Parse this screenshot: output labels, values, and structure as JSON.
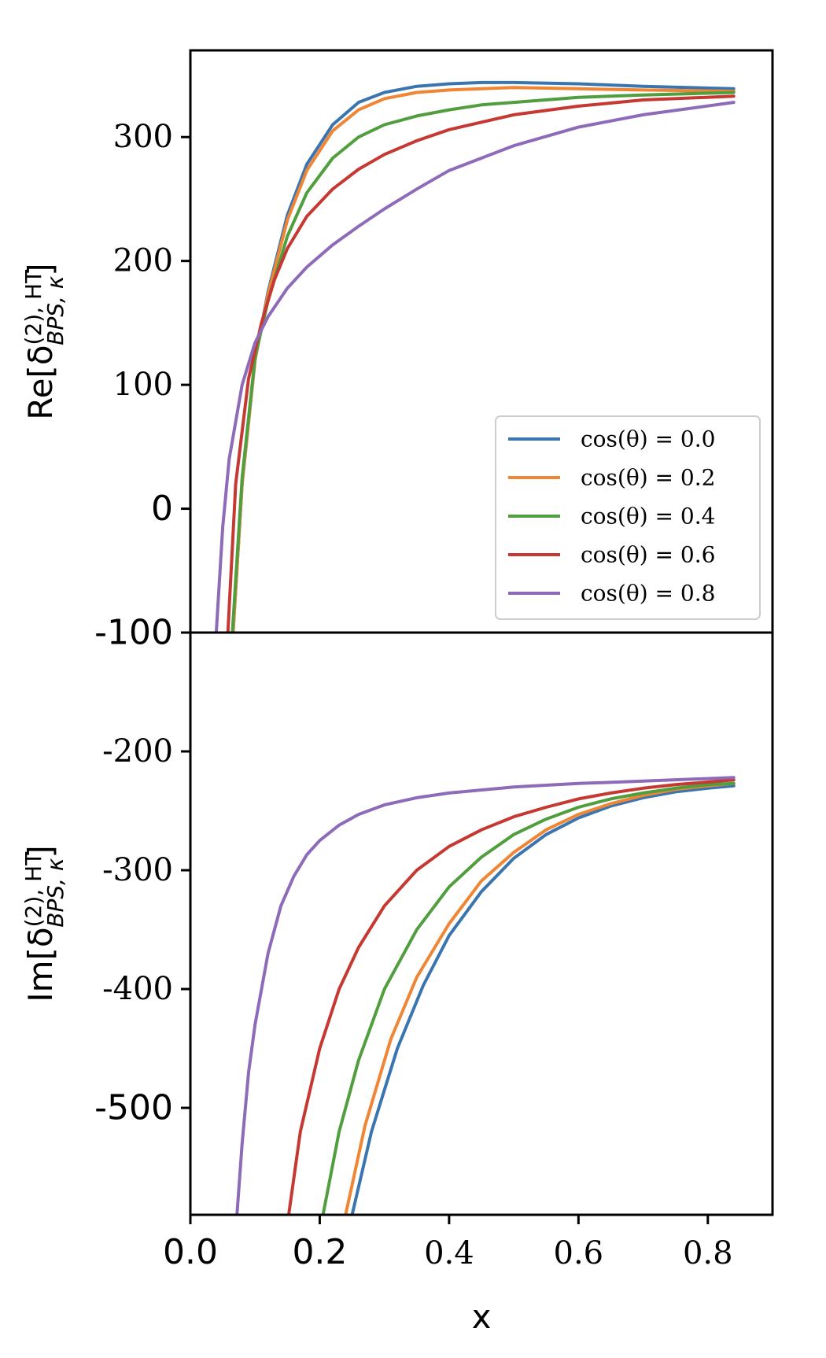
{
  "chart_data": [
    {
      "type": "line",
      "panel": "top",
      "ylabel_text": "Re[δ",
      "ylabel_sub": "BPS, κ",
      "ylabel_sup": "(2), HT",
      "ylabel_close": "]",
      "xlim": [
        0.0,
        0.9
      ],
      "ylim": [
        -100,
        370
      ],
      "yticks": [
        {
          "value": -100,
          "label": "-100",
          "style": "sans"
        },
        {
          "value": 0,
          "label": "0",
          "style": "sans"
        },
        {
          "value": 100,
          "label": "100",
          "style": "serif"
        },
        {
          "value": 200,
          "label": "200",
          "style": "serif"
        },
        {
          "value": 300,
          "label": "300",
          "style": "serif"
        }
      ],
      "legend": {
        "placement": "lower-right",
        "entries": [
          "cos(θ) = 0.0",
          "cos(θ) = 0.2",
          "cos(θ) = 0.4",
          "cos(θ) = 0.6",
          "cos(θ) = 0.8"
        ]
      },
      "series": [
        {
          "name": "cos(θ) = 0.0",
          "color": "#3b75af",
          "x": [
            0.066,
            0.08,
            0.1,
            0.12,
            0.15,
            0.18,
            0.22,
            0.26,
            0.3,
            0.35,
            0.4,
            0.45,
            0.5,
            0.6,
            0.7,
            0.84
          ],
          "y": [
            -100,
            20,
            120,
            175,
            237,
            278,
            310,
            328,
            336,
            341,
            343,
            344,
            344,
            343,
            341,
            339
          ]
        },
        {
          "name": "cos(θ) = 0.2",
          "color": "#ef8636",
          "x": [
            0.066,
            0.08,
            0.1,
            0.12,
            0.15,
            0.18,
            0.22,
            0.26,
            0.3,
            0.35,
            0.4,
            0.45,
            0.5,
            0.6,
            0.7,
            0.84
          ],
          "y": [
            -100,
            20,
            120,
            173,
            233,
            273,
            305,
            322,
            331,
            336,
            338,
            339,
            340,
            339,
            338,
            337
          ]
        },
        {
          "name": "cos(θ) = 0.4",
          "color": "#519e3e",
          "x": [
            0.065,
            0.08,
            0.1,
            0.12,
            0.15,
            0.18,
            0.22,
            0.26,
            0.3,
            0.35,
            0.4,
            0.45,
            0.5,
            0.6,
            0.7,
            0.84
          ],
          "y": [
            -100,
            25,
            122,
            168,
            220,
            255,
            283,
            300,
            310,
            317,
            322,
            326,
            328,
            332,
            334,
            336
          ]
        },
        {
          "name": "cos(θ) = 0.6",
          "color": "#c53932",
          "x": [
            0.058,
            0.07,
            0.09,
            0.11,
            0.13,
            0.15,
            0.18,
            0.22,
            0.26,
            0.3,
            0.35,
            0.4,
            0.5,
            0.6,
            0.7,
            0.84
          ],
          "y": [
            -100,
            20,
            105,
            150,
            185,
            210,
            236,
            258,
            274,
            286,
            297,
            306,
            318,
            325,
            330,
            333
          ]
        },
        {
          "name": "cos(θ) = 0.8",
          "color": "#8d6bb8",
          "x": [
            0.04,
            0.05,
            0.06,
            0.08,
            0.1,
            0.12,
            0.15,
            0.18,
            0.22,
            0.26,
            0.3,
            0.35,
            0.4,
            0.5,
            0.6,
            0.7,
            0.84
          ],
          "y": [
            -100,
            -15,
            40,
            100,
            134,
            155,
            178,
            195,
            213,
            228,
            242,
            258,
            273,
            293,
            308,
            318,
            328
          ]
        }
      ]
    },
    {
      "type": "line",
      "panel": "bottom",
      "ylabel_text": "Im[δ",
      "ylabel_sub": "BPS, κ",
      "ylabel_sup": "(2), HT",
      "ylabel_close": "]",
      "xlabel": "x",
      "xlim": [
        0.0,
        0.9
      ],
      "ylim": [
        -590,
        -100
      ],
      "xticks": [
        {
          "value": 0.0,
          "label": "0.0",
          "style": "sans"
        },
        {
          "value": 0.2,
          "label": "0.2",
          "style": "sans"
        },
        {
          "value": 0.4,
          "label": "0.4",
          "style": "serif"
        },
        {
          "value": 0.6,
          "label": "0.6",
          "style": "serif"
        },
        {
          "value": 0.8,
          "label": "0.8",
          "style": "serif"
        }
      ],
      "yticks": [
        {
          "value": -200,
          "label": "-200",
          "style": "serif"
        },
        {
          "value": -300,
          "label": "-300",
          "style": "serif"
        },
        {
          "value": -400,
          "label": "-400",
          "style": "serif"
        },
        {
          "value": -500,
          "label": "-500",
          "style": "sans"
        }
      ],
      "series": [
        {
          "name": "cos(θ) = 0.0",
          "color": "#3b75af",
          "x": [
            0.25,
            0.28,
            0.32,
            0.36,
            0.4,
            0.45,
            0.5,
            0.55,
            0.6,
            0.65,
            0.7,
            0.75,
            0.8,
            0.84
          ],
          "y": [
            -590,
            -520,
            -450,
            -397,
            -355,
            -318,
            -290,
            -270,
            -256,
            -246,
            -239,
            -234,
            -231,
            -229
          ]
        },
        {
          "name": "cos(θ) = 0.2",
          "color": "#ef8636",
          "x": [
            0.24,
            0.27,
            0.31,
            0.35,
            0.4,
            0.45,
            0.5,
            0.55,
            0.6,
            0.65,
            0.7,
            0.75,
            0.8,
            0.84
          ],
          "y": [
            -590,
            -515,
            -442,
            -390,
            -345,
            -309,
            -285,
            -266,
            -253,
            -244,
            -237,
            -232,
            -229,
            -227
          ]
        },
        {
          "name": "cos(θ) = 0.4",
          "color": "#519e3e",
          "x": [
            0.205,
            0.23,
            0.26,
            0.3,
            0.35,
            0.4,
            0.45,
            0.5,
            0.55,
            0.6,
            0.65,
            0.7,
            0.75,
            0.8,
            0.84
          ],
          "y": [
            -590,
            -520,
            -460,
            -400,
            -350,
            -314,
            -289,
            -270,
            -257,
            -247,
            -240,
            -235,
            -231,
            -228,
            -227
          ]
        },
        {
          "name": "cos(θ) = 0.6",
          "color": "#c53932",
          "x": [
            0.152,
            0.17,
            0.2,
            0.23,
            0.26,
            0.3,
            0.35,
            0.4,
            0.45,
            0.5,
            0.55,
            0.6,
            0.65,
            0.7,
            0.75,
            0.84
          ],
          "y": [
            -590,
            -520,
            -450,
            -400,
            -365,
            -330,
            -300,
            -280,
            -266,
            -255,
            -247,
            -240,
            -235,
            -231,
            -228,
            -224
          ]
        },
        {
          "name": "cos(θ) = 0.8",
          "color": "#8d6bb8",
          "x": [
            0.072,
            0.08,
            0.09,
            0.1,
            0.12,
            0.14,
            0.16,
            0.18,
            0.2,
            0.23,
            0.26,
            0.3,
            0.35,
            0.4,
            0.5,
            0.6,
            0.7,
            0.84
          ],
          "y": [
            -590,
            -530,
            -470,
            -430,
            -370,
            -330,
            -305,
            -287,
            -275,
            -262,
            -253,
            -245,
            -239,
            -235,
            -230,
            -227,
            -225,
            -222
          ]
        }
      ]
    }
  ]
}
